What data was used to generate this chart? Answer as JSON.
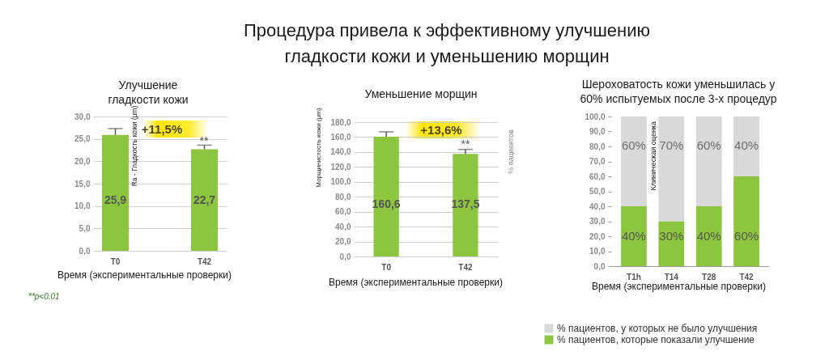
{
  "chart_data": [
    {
      "type": "other",
      "title": "Процедура привела к эффективному улучшению гладкости кожи и уменьшению морщин"
    },
    {
      "type": "bar",
      "title": "Улучшение гладкости кожи",
      "xlabel": "Время (экспериментальные проверки)",
      "ylabel": "Ra - Гладкость кожи (μm)",
      "categories": [
        "T0",
        "T42"
      ],
      "values": [
        25.9,
        22.7
      ],
      "value_labels": [
        "25,9",
        "22,7"
      ],
      "errors": [
        [
          25.9,
          27.3
        ],
        [
          22.7,
          23.6
        ]
      ],
      "color": "#8cc63e",
      "ylim": [
        0,
        30
      ],
      "yticks": [
        {
          "value": 0,
          "label": "0,0"
        },
        {
          "value": 5,
          "label": "5,0"
        },
        {
          "value": 10,
          "label": "10,0"
        },
        {
          "value": 15,
          "label": "15,0"
        },
        {
          "value": 20,
          "label": "20,0"
        },
        {
          "value": 25,
          "label": "25,0"
        },
        {
          "value": 30,
          "label": "30,0"
        }
      ],
      "grid": true,
      "annotations": [
        "+11,5%",
        "**",
        "**p<0.01"
      ]
    },
    {
      "type": "bar",
      "title": "Уменьшение морщин",
      "xlabel": "Время (экспериментальные проверки)",
      "ylabel": "Морщинистость кожи (μm)",
      "categories": [
        "T0",
        "T42"
      ],
      "values": [
        160.6,
        137.5
      ],
      "value_labels": [
        "160,6",
        "137,5"
      ],
      "errors": [
        [
          160.6,
          167
        ],
        [
          137.5,
          143.5
        ]
      ],
      "color": "#8cc63e",
      "ylim": [
        0,
        180
      ],
      "yticks": [
        {
          "value": 0,
          "label": "0,0"
        },
        {
          "value": 20,
          "label": "20,0"
        },
        {
          "value": 40,
          "label": "40,0"
        },
        {
          "value": 60,
          "label": "60,0"
        },
        {
          "value": 80,
          "label": "80,0"
        },
        {
          "value": 100,
          "label": "100,0"
        },
        {
          "value": 120,
          "label": "120,0"
        },
        {
          "value": 140,
          "label": "140,0"
        },
        {
          "value": 160,
          "label": "160,0"
        },
        {
          "value": 180,
          "label": "180,0"
        }
      ],
      "grid": true,
      "annotations": [
        "+13,6%",
        "**"
      ]
    },
    {
      "type": "bar",
      "stacked": true,
      "title": "Шероховатость кожи уменьшилась у 60% испытуемых после 3-х процедур",
      "xlabel": "Время (экспериментальные проверки)",
      "ylabel": "% пациентов",
      "categories": [
        "T1h",
        "T14",
        "T28",
        "T42"
      ],
      "series": [
        {
          "name": "% пациентов, которые показали улучшение",
          "color": "#8cc63e",
          "values": [
            40,
            30,
            40,
            60
          ],
          "value_labels": [
            "40%",
            "30%",
            "40%",
            "60%"
          ]
        },
        {
          "name": "% пациентов, у которых не было улучшения",
          "color": "#d9d9d9",
          "values": [
            60,
            70,
            60,
            40
          ],
          "value_labels": [
            "60%",
            "70%",
            "60%",
            "40%"
          ]
        }
      ],
      "ylim": [
        0,
        100
      ],
      "yticks": [
        {
          "value": 0,
          "label": "0,0"
        },
        {
          "value": 10,
          "label": "10,0"
        },
        {
          "value": 20,
          "label": "20,0"
        },
        {
          "value": 30,
          "label": "30,0"
        },
        {
          "value": 40,
          "label": "40,0"
        },
        {
          "value": 50,
          "label": "50,0"
        },
        {
          "value": 60,
          "label": "60,0"
        },
        {
          "value": 70,
          "label": "70,0"
        },
        {
          "value": 80,
          "label": "80,0"
        },
        {
          "value": 90,
          "label": "90,0"
        },
        {
          "value": 100,
          "label": "100,0"
        }
      ],
      "legend": "bottom",
      "annotations": [
        "Клиническая оценка"
      ]
    }
  ]
}
